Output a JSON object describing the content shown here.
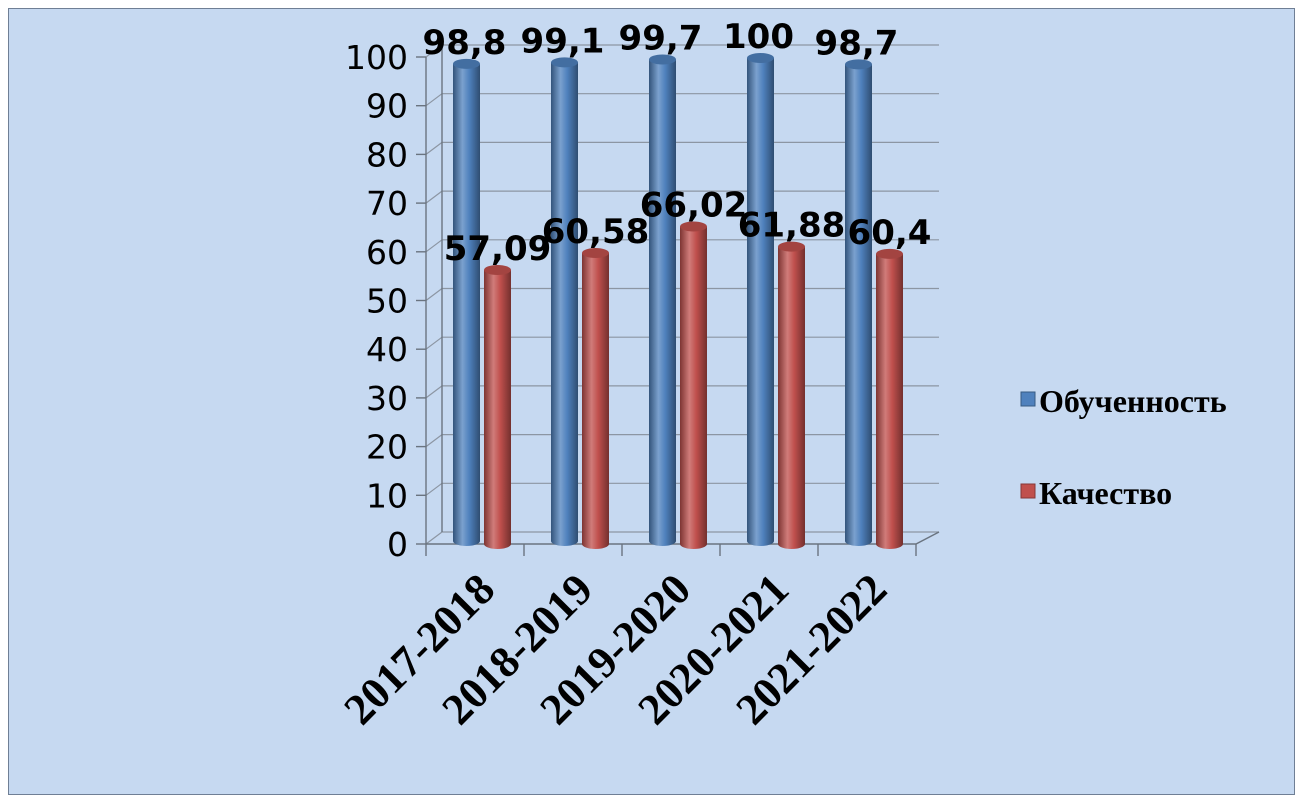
{
  "chart_data": {
    "type": "bar",
    "variant": "3d-cylinder",
    "title": "",
    "xlabel": "",
    "ylabel": "",
    "categories": [
      "2017-2018",
      "2018-2019",
      "2019-2020",
      "2020-2021",
      "2021-2022"
    ],
    "series": [
      {
        "name": "Обученность",
        "values": [
          98.8,
          99.1,
          99.7,
          100,
          98.7
        ],
        "labels": [
          "98,8",
          "99,1",
          "99,7",
          "100",
          "98,7"
        ],
        "color": "#4f81bd"
      },
      {
        "name": "Качество",
        "values": [
          57.09,
          60.58,
          66.02,
          61.88,
          60.4
        ],
        "labels": [
          "57,09",
          "60,58",
          "66,02",
          "61,88",
          "60,4"
        ],
        "color": "#c0504d"
      }
    ],
    "ylim": [
      0,
      100
    ],
    "yticks": [
      0,
      10,
      20,
      30,
      40,
      50,
      60,
      70,
      80,
      90,
      100
    ],
    "grid": true,
    "legend_position": "right",
    "background_color": "#c6d9f1"
  }
}
